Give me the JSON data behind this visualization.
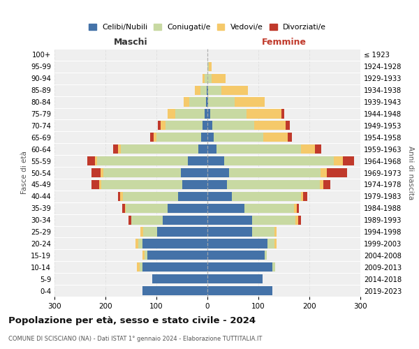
{
  "age_groups": [
    "100+",
    "95-99",
    "90-94",
    "85-89",
    "80-84",
    "75-79",
    "70-74",
    "65-69",
    "60-64",
    "55-59",
    "50-54",
    "45-49",
    "40-44",
    "35-39",
    "30-34",
    "25-29",
    "20-24",
    "15-19",
    "10-14",
    "5-9",
    "0-4"
  ],
  "birth_years": [
    "≤ 1923",
    "1924-1928",
    "1929-1933",
    "1934-1938",
    "1939-1943",
    "1944-1948",
    "1949-1953",
    "1954-1958",
    "1959-1963",
    "1964-1968",
    "1969-1973",
    "1974-1978",
    "1979-1983",
    "1984-1988",
    "1989-1993",
    "1994-1998",
    "1999-2003",
    "2004-2008",
    "2009-2013",
    "2014-2018",
    "2019-2023"
  ],
  "maschi_celibi": [
    0,
    0,
    0,
    2,
    3,
    5,
    10,
    12,
    18,
    38,
    52,
    50,
    58,
    78,
    88,
    98,
    128,
    118,
    128,
    108,
    128
  ],
  "maschi_coniugati": [
    0,
    0,
    5,
    12,
    32,
    58,
    72,
    88,
    152,
    178,
    152,
    158,
    108,
    82,
    62,
    28,
    8,
    5,
    5,
    0,
    0
  ],
  "maschi_vedove": [
    0,
    0,
    5,
    10,
    12,
    15,
    10,
    5,
    5,
    5,
    5,
    5,
    5,
    2,
    0,
    5,
    5,
    5,
    5,
    0,
    0
  ],
  "maschi_divorziate": [
    0,
    0,
    0,
    0,
    0,
    0,
    5,
    8,
    10,
    15,
    18,
    15,
    5,
    5,
    5,
    0,
    0,
    0,
    0,
    0,
    0
  ],
  "femmine_nubili": [
    0,
    0,
    0,
    2,
    2,
    5,
    10,
    12,
    18,
    33,
    42,
    38,
    48,
    72,
    88,
    88,
    118,
    112,
    128,
    108,
    128
  ],
  "femmine_coniugate": [
    0,
    3,
    8,
    25,
    52,
    72,
    82,
    98,
    165,
    215,
    180,
    182,
    135,
    98,
    85,
    43,
    13,
    5,
    5,
    0,
    0
  ],
  "femmine_vedove": [
    0,
    5,
    28,
    52,
    58,
    68,
    62,
    48,
    28,
    18,
    12,
    8,
    5,
    5,
    5,
    5,
    5,
    0,
    0,
    0,
    0
  ],
  "femmine_divorziate": [
    0,
    0,
    0,
    0,
    0,
    5,
    8,
    8,
    12,
    22,
    40,
    13,
    8,
    5,
    5,
    0,
    0,
    0,
    0,
    0,
    0
  ],
  "color_celibi": "#4472a8",
  "color_coniugati": "#c8d9a2",
  "color_vedove": "#f5c96a",
  "color_divorziate": "#c0392b",
  "xlim": 300,
  "title": "Popolazione per età, sesso e stato civile - 2024",
  "subtitle": "COMUNE DI SCISCIANO (NA) - Dati ISTAT 1° gennaio 2024 - Elaborazione TUTTITALIA.IT",
  "label_maschi": "Maschi",
  "label_femmine": "Femmine",
  "ylabel_left": "Fasce di età",
  "ylabel_right": "Anni di nascita",
  "legend_labels": [
    "Celibi/Nubili",
    "Coniugati/e",
    "Vedovi/e",
    "Divorziati/e"
  ],
  "bg_color": "#ffffff",
  "plot_bg": "#efefef"
}
